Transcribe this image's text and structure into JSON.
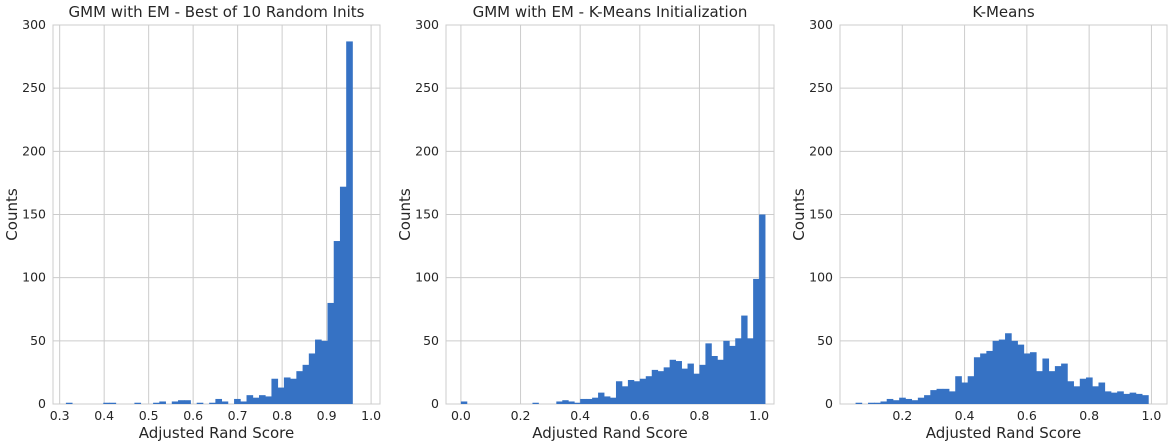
{
  "chart_data": [
    {
      "type": "bar",
      "title": "GMM with EM - Best of 10 Random Inits",
      "xlabel": "Adjusted Rand Score",
      "ylabel": "Counts",
      "xlim": [
        0.285,
        1.02
      ],
      "ylim": [
        0,
        300
      ],
      "xticks": [
        "0.3",
        "0.4",
        "0.5",
        "0.6",
        "0.7",
        "0.8",
        "0.9",
        "1.0"
      ],
      "xtick_values": [
        0.3,
        0.4,
        0.5,
        0.6,
        0.7,
        0.8,
        0.9,
        1.0
      ],
      "yticks": [
        "0",
        "50",
        "100",
        "150",
        "200",
        "250",
        "300"
      ],
      "ytick_values": [
        0,
        50,
        100,
        150,
        200,
        250,
        300
      ],
      "grid": true,
      "color": "#3672c4",
      "bin_start": 0.3,
      "bin_width": 0.014,
      "values": [
        0,
        1,
        0,
        0,
        0,
        0,
        0,
        1,
        1,
        0,
        0,
        0,
        1,
        0,
        0,
        1,
        2,
        0,
        2,
        3,
        3,
        0,
        1,
        0,
        1,
        4,
        2,
        0,
        4,
        2,
        7,
        5,
        7,
        6,
        20,
        13,
        21,
        20,
        26,
        31,
        40,
        51,
        50,
        80,
        129,
        172,
        287
      ]
    },
    {
      "type": "bar",
      "title": "GMM with EM - K-Means Initialization",
      "xlabel": "Adjusted Rand Score",
      "ylabel": "Counts",
      "xlim": [
        -0.05,
        1.05
      ],
      "ylim": [
        0,
        300
      ],
      "xticks": [
        "0.0",
        "0.2",
        "0.4",
        "0.6",
        "0.8",
        "1.0"
      ],
      "xtick_values": [
        0.0,
        0.2,
        0.4,
        0.6,
        0.8,
        1.0
      ],
      "yticks": [
        "0",
        "50",
        "100",
        "150",
        "200",
        "250",
        "300"
      ],
      "ytick_values": [
        0,
        50,
        100,
        150,
        200,
        250,
        300
      ],
      "grid": true,
      "color": "#3672c4",
      "bin_start": 0.0,
      "bin_width": 0.02,
      "values": [
        2,
        0,
        0,
        0,
        0,
        0,
        0,
        0,
        0,
        0,
        0,
        0,
        1,
        0,
        0,
        0,
        2,
        3,
        2,
        1,
        4,
        4,
        5,
        9,
        6,
        5,
        18,
        14,
        19,
        18,
        20,
        22,
        27,
        26,
        29,
        35,
        34,
        28,
        32,
        24,
        31,
        48,
        38,
        35,
        50,
        46,
        52,
        70,
        52,
        99,
        150
      ]
    },
    {
      "type": "bar",
      "title": "K-Means",
      "xlabel": "Adjusted Rand Score",
      "ylabel": "Counts",
      "xlim": [
        0.0,
        1.05
      ],
      "ylim": [
        0,
        300
      ],
      "xticks": [
        "0.2",
        "0.4",
        "0.6",
        "0.8",
        "1.0"
      ],
      "xtick_values": [
        0.2,
        0.4,
        0.6,
        0.8,
        1.0
      ],
      "yticks": [
        "0",
        "50",
        "100",
        "150",
        "200",
        "250",
        "300"
      ],
      "ytick_values": [
        0,
        50,
        100,
        150,
        200,
        250,
        300
      ],
      "grid": true,
      "color": "#3672c4",
      "bin_start": 0.05,
      "bin_width": 0.02,
      "values": [
        1,
        0,
        1,
        1,
        2,
        4,
        3,
        5,
        4,
        3,
        5,
        7,
        11,
        12,
        12,
        10,
        22,
        17,
        22,
        37,
        40,
        42,
        50,
        51,
        56,
        50,
        47,
        40,
        41,
        26,
        36,
        26,
        30,
        32,
        18,
        14,
        20,
        21,
        14,
        17,
        10,
        9,
        10,
        8,
        9,
        8,
        7
      ]
    }
  ]
}
